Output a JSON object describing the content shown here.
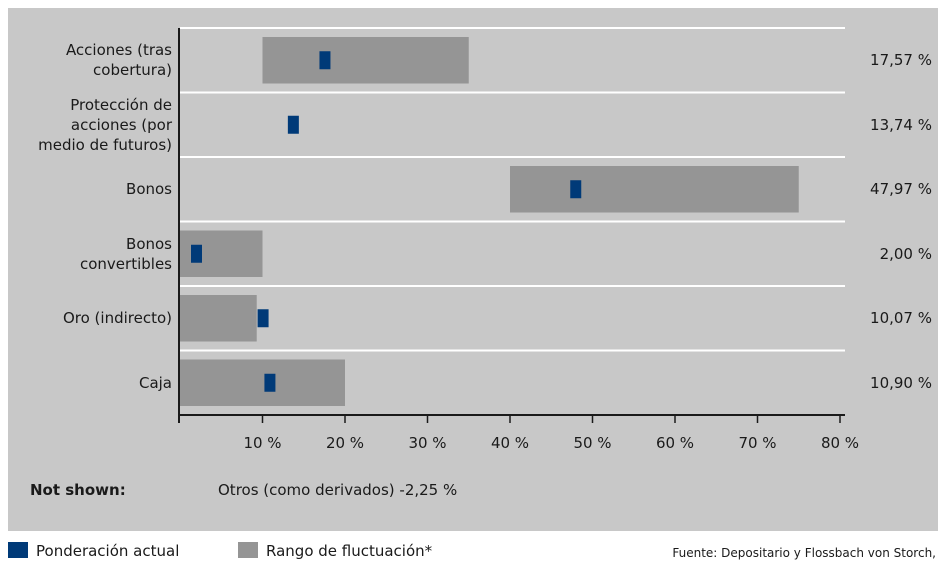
{
  "chart_data": {
    "type": "bar",
    "subtype": "range-with-marker",
    "orientation": "horizontal",
    "categories": [
      "Acciones (tras\ncobertura)",
      "Protección de\nacciones (por\nmedio de futuros)",
      "Bonos",
      "Bonos\nconvertibles",
      "Oro (indirecto)",
      "Caja"
    ],
    "series": [
      {
        "name": "Rango de fluctuación*",
        "ranges": [
          [
            10,
            35
          ],
          null,
          [
            40,
            75
          ],
          [
            0,
            10
          ],
          [
            0,
            9.3
          ],
          [
            0,
            20
          ]
        ]
      },
      {
        "name": "Ponderación actual",
        "values": [
          17.57,
          13.74,
          47.97,
          2.0,
          10.07,
          10.9
        ]
      }
    ],
    "value_labels": [
      "17,57 %",
      "13,74 %",
      "47,97 %",
      "2,00 %",
      "10,07 %",
      "10,90 %"
    ],
    "x_ticks": [
      10,
      20,
      30,
      40,
      50,
      60,
      70,
      80
    ],
    "x_tick_labels": [
      "10 %",
      "20 %",
      "30 %",
      "40 %",
      "50 %",
      "60 %",
      "70 %",
      "80 %"
    ],
    "xlim": [
      0,
      80
    ],
    "grid": true,
    "legend_position": "bottom-left"
  },
  "not_shown": {
    "label": "Not shown:",
    "text": "Otros (como derivados) -2,25 %"
  },
  "legend": {
    "current_label": "Ponderación actual",
    "range_label": "Rango de fluctuación*"
  },
  "source": "Fuente: Depositario y Flossbach von Storch,",
  "colors": {
    "panel": "#c8c8c8",
    "range": "#959595",
    "marker": "#003a78",
    "gridline": "#ffffff",
    "axis": "#1a1a1a"
  }
}
